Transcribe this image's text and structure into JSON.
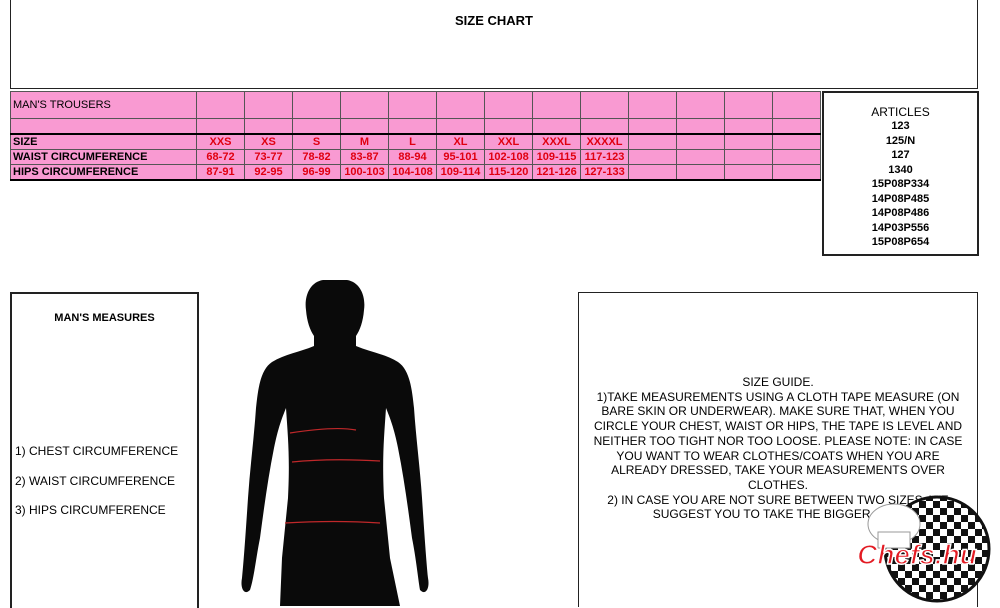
{
  "title": "SIZE CHART",
  "table": {
    "section_label": "MAN'S TROUSERS",
    "rows": [
      {
        "label": "SIZE",
        "values": [
          "XXS",
          "XS",
          "S",
          "M",
          "L",
          "XL",
          "XXL",
          "XXXL",
          "XXXXL"
        ]
      },
      {
        "label": "WAIST CIRCUMFERENCE",
        "values": [
          "68-72",
          "73-77",
          "78-82",
          "83-87",
          "88-94",
          "95-101",
          "102-108",
          "109-115",
          "117-123"
        ]
      },
      {
        "label": "HIPS CIRCUMFERENCE",
        "values": [
          "87-91",
          "92-95",
          "96-99",
          "100-103",
          "104-108",
          "109-114",
          "115-120",
          "121-126",
          "127-133"
        ]
      }
    ],
    "background_color": "#f99ad2",
    "value_color": "#e00010"
  },
  "articles": {
    "heading": "ARTICLES",
    "items": [
      "123",
      "125/N",
      "127",
      "1340",
      "15P08P334",
      "14P08P485",
      "14P08P486",
      "14P03P556",
      "15P08P654"
    ]
  },
  "measures": {
    "heading": "MAN'S MEASURES",
    "items": [
      "1) CHEST CIRCUMFERENCE",
      "2)  WAIST CIRCUMFERENCE",
      "3)  HIPS CIRCUMFERENCE"
    ]
  },
  "guide": {
    "text": "SIZE GUIDE.\n1)TAKE MEASUREMENTS USING A CLOTH TAPE MEASURE (ON BARE SKIN OR UNDERWEAR). MAKE SURE THAT, WHEN YOU CIRCLE YOUR CHEST, WAIST OR HIPS, THE TAPE IS LEVEL AND NEITHER TOO TIGHT NOR TOO LOOSE.    PLEASE NOTE: IN CASE YOU WANT TO WEAR CLOTHES/COATS WHEN YOU ARE ALREADY DRESSED, TAKE YOUR MEASUREMENTS OVER CLOTHES.\n2) IN CASE YOU ARE NOT SURE BETWEEN TWO SIZES, WE SUGGEST YOU TO TAKE THE BIGGER ONE."
  },
  "logo": {
    "text": "Chefs.hu"
  }
}
